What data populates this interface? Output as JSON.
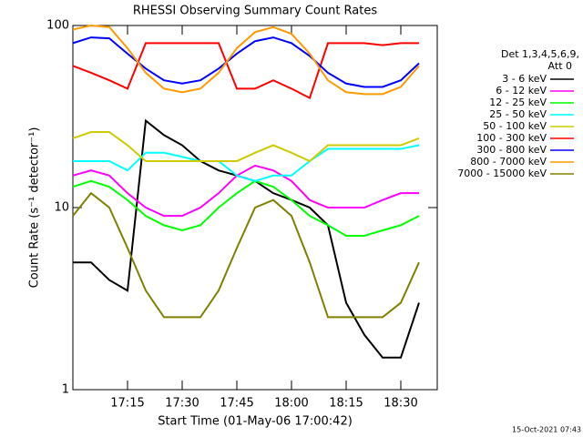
{
  "chart_data": {
    "type": "line",
    "title": "RHESSI Observing Summary Count Rates",
    "x_label": "Start Time (01-May-06 17:00:42)",
    "y_label": "Count Rate (s⁻¹ detector⁻¹)",
    "legend_title": [
      "Det 1,3,4,5,6,9,",
      "Att 0"
    ],
    "timestamp": "15-Oct-2021 07:43",
    "log_y": true,
    "x": [
      "17:00",
      "17:05",
      "17:10",
      "17:15",
      "17:20",
      "17:25",
      "17:30",
      "17:35",
      "17:40",
      "17:45",
      "17:50",
      "17:55",
      "18:00",
      "18:05",
      "18:10",
      "18:15",
      "18:20",
      "18:25",
      "18:30",
      "18:35",
      "18:40"
    ],
    "xlim": [
      "17:00",
      "18:40"
    ],
    "xticks": [
      "17:15",
      "17:30",
      "17:45",
      "18:00",
      "18:15",
      "18:30"
    ],
    "ylim": [
      1,
      100
    ],
    "yticks": [
      1,
      10,
      100
    ],
    "series": [
      {
        "name": "3 - 6 keV",
        "color": "#000000",
        "values": [
          5,
          5,
          4,
          3.5,
          30,
          25,
          22,
          18,
          16,
          15,
          14,
          12,
          11,
          10,
          8,
          3,
          2,
          1.5,
          1.5,
          3,
          null
        ]
      },
      {
        "name": "6 - 12 keV",
        "color": "#ff00ff",
        "values": [
          15,
          16,
          15,
          12,
          10,
          9,
          9,
          10,
          12,
          15,
          17,
          16,
          14,
          11,
          10,
          10,
          10,
          11,
          12,
          12,
          null
        ]
      },
      {
        "name": "12 - 25 keV",
        "color": "#00ff00",
        "values": [
          13,
          14,
          13,
          11,
          9,
          8,
          7.5,
          8,
          10,
          12,
          14,
          13,
          11,
          9,
          8,
          7,
          7,
          7.5,
          8,
          9,
          null
        ]
      },
      {
        "name": "25 - 50 keV",
        "color": "#00ffff",
        "values": [
          18,
          18,
          18,
          16,
          20,
          20,
          19,
          18,
          18,
          15,
          14,
          15,
          15,
          18,
          21,
          21,
          21,
          21,
          21,
          22,
          null
        ]
      },
      {
        "name": "50 - 100 keV",
        "color": "#cccc00",
        "values": [
          24,
          26,
          26,
          22,
          18,
          18,
          18,
          18,
          18,
          18,
          20,
          22,
          20,
          18,
          22,
          22,
          22,
          22,
          22,
          24,
          null
        ]
      },
      {
        "name": "100 - 300 keV",
        "color": "#ff0000",
        "values": [
          60,
          55,
          50,
          45,
          80,
          80,
          80,
          80,
          80,
          45,
          45,
          50,
          45,
          40,
          80,
          80,
          80,
          78,
          80,
          80,
          null
        ]
      },
      {
        "name": "300 - 800 keV",
        "color": "#0000ff",
        "values": [
          80,
          86,
          85,
          70,
          58,
          50,
          48,
          50,
          58,
          70,
          82,
          86,
          80,
          68,
          55,
          48,
          46,
          46,
          50,
          62,
          null
        ]
      },
      {
        "name": "800 - 7000 keV",
        "color": "#ff9900",
        "values": [
          95,
          100,
          98,
          75,
          55,
          45,
          43,
          45,
          55,
          75,
          92,
          98,
          90,
          70,
          50,
          43,
          42,
          42,
          46,
          60,
          null
        ]
      },
      {
        "name": "7000 - 15000 keV",
        "color": "#808000",
        "values": [
          9,
          12,
          10,
          6,
          3.5,
          2.5,
          2.5,
          2.5,
          3.5,
          6,
          10,
          11,
          9,
          5,
          2.5,
          2.5,
          2.5,
          2.5,
          3,
          5,
          null
        ]
      }
    ]
  }
}
